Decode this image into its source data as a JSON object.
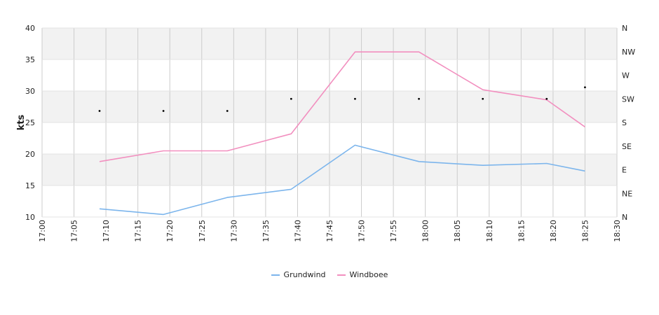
{
  "chart_data": {
    "type": "line",
    "ylabel": "kts",
    "ylim": [
      10,
      40
    ],
    "y_ticks": [
      "10",
      "15",
      "20",
      "25",
      "30",
      "35",
      "40"
    ],
    "x_ticks": [
      "17:00",
      "17:05",
      "17:10",
      "17:15",
      "17:20",
      "17:25",
      "17:30",
      "17:35",
      "17:40",
      "17:45",
      "17:50",
      "17:55",
      "18:00",
      "18:05",
      "18:10",
      "18:15",
      "18:20",
      "18:25",
      "18:30"
    ],
    "x_range": [
      "17:00",
      "18:30"
    ],
    "right_axis_ticks": [
      "N",
      "NE",
      "E",
      "SE",
      "S",
      "SW",
      "W",
      "NW",
      "N"
    ],
    "right_axis_range_degrees": [
      0,
      360
    ],
    "grid": true,
    "legend_position": "bottom",
    "series": [
      {
        "name": "Grundwind",
        "color": "#7cb5ec",
        "points": [
          {
            "x": "17:09",
            "y": 11.3
          },
          {
            "x": "17:19",
            "y": 10.4
          },
          {
            "x": "17:29",
            "y": 13.1
          },
          {
            "x": "17:39",
            "y": 14.4
          },
          {
            "x": "17:49",
            "y": 21.4
          },
          {
            "x": "17:59",
            "y": 18.8
          },
          {
            "x": "18:09",
            "y": 18.2
          },
          {
            "x": "18:19",
            "y": 18.5
          },
          {
            "x": "18:25",
            "y": 17.3
          }
        ]
      },
      {
        "name": "Windboee",
        "color": "#f28fbf",
        "points": [
          {
            "x": "17:09",
            "y": 18.8
          },
          {
            "x": "17:19",
            "y": 20.5
          },
          {
            "x": "17:29",
            "y": 20.5
          },
          {
            "x": "17:39",
            "y": 23.2
          },
          {
            "x": "17:49",
            "y": 36.2
          },
          {
            "x": "17:59",
            "y": 36.2
          },
          {
            "x": "18:09",
            "y": 30.2
          },
          {
            "x": "18:19",
            "y": 28.6
          },
          {
            "x": "18:25",
            "y": 24.3
          }
        ]
      }
    ],
    "direction": {
      "color": "#000000",
      "points": [
        {
          "x": "17:09",
          "deg": 202
        },
        {
          "x": "17:19",
          "deg": 202
        },
        {
          "x": "17:29",
          "deg": 202
        },
        {
          "x": "17:39",
          "deg": 225
        },
        {
          "x": "17:49",
          "deg": 225
        },
        {
          "x": "17:59",
          "deg": 225
        },
        {
          "x": "18:09",
          "deg": 225
        },
        {
          "x": "18:19",
          "deg": 225
        },
        {
          "x": "18:25",
          "deg": 247
        }
      ]
    }
  }
}
